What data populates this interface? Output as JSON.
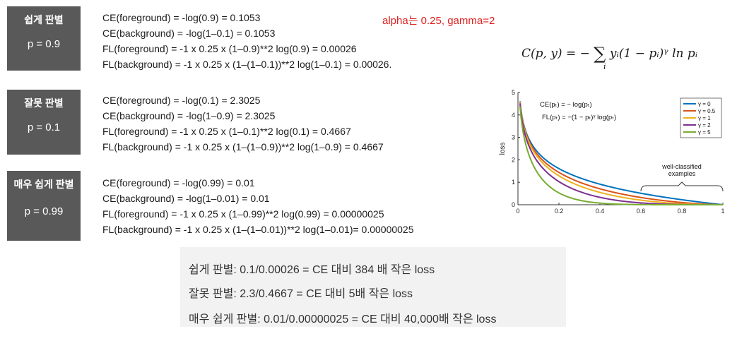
{
  "cases": [
    {
      "title": "쉽게 판별",
      "prob": "p = 0.9",
      "lines": [
        "CE(foreground) = -log(0.9) = 0.1053",
        "CE(background) = -log(1–0.1) = 0.1053",
        "FL(foreground) = -1 x 0.25 x (1–0.9)**2 log(0.9) = 0.00026",
        "FL(background) = -1 x 0.25 x (1–(1–0.1))**2 log(1–0.1) = 0.00026."
      ]
    },
    {
      "title": "잘못 판별",
      "prob": "p = 0.1",
      "lines": [
        "CE(foreground) = -log(0.1) = 2.3025",
        "CE(background) = -log(1–0.9) = 2.3025",
        "FL(foreground) = -1 x 0.25 x (1–0.1)**2 log(0.1) = 0.4667",
        "FL(background) = -1 x 0.25 x (1–(1–0.9))**2 log(1–0.9) = 0.4667"
      ]
    },
    {
      "title": "매우 쉽게 판별",
      "prob": "p = 0.99",
      "lines": [
        "CE(foreground) = -log(0.99) = 0.01",
        "CE(background) = -log(1–0.01) = 0.01",
        "FL(foreground) = -1 x 0.25 x (1–0.99)**2 log(0.99) = 0.00000025",
        "FL(background) = -1 x 0.25 x (1–(1–0.01))**2 log(1–0.01)= 0.00000025"
      ]
    }
  ],
  "alpha_note": "alpha는 0.25, gamma=2",
  "formula": {
    "lhs": "C(p, y) = −",
    "sum": "∑",
    "sub": "i",
    "rhs": "yᵢ(1 − pᵢ)ᵞ ln pᵢ"
  },
  "summary": [
    "쉽게 판별: 0.1/0.00026 = CE 대비 384 배 작은 loss",
    "잘못 판별: 2.3/0.4667 = CE 대비 5배 작은 loss",
    "매우 쉽게 판별: 0.01/0.00000025 = CE 대비 40,000배 작은 loss"
  ],
  "chart_data": {
    "type": "line",
    "ylabel": "loss",
    "xlim": [
      0,
      1
    ],
    "ylim": [
      0,
      5
    ],
    "xticks": [
      "0",
      "0.2",
      "0.4",
      "0.6",
      "0.8",
      "1"
    ],
    "yticks": [
      "0",
      "1",
      "2",
      "3",
      "4",
      "5"
    ],
    "grid": false,
    "legend_position": "top-right",
    "series": [
      {
        "name": "γ = 0",
        "gamma": 0,
        "color": "#0072bd"
      },
      {
        "name": "γ = 0.5",
        "gamma": 0.5,
        "color": "#d95319"
      },
      {
        "name": "γ = 1",
        "gamma": 1,
        "color": "#edb120"
      },
      {
        "name": "γ = 2",
        "gamma": 2,
        "color": "#7e2f8e"
      },
      {
        "name": "γ = 5",
        "gamma": 5,
        "color": "#77ac30"
      }
    ],
    "annotations": {
      "ce_formula": "CE(pₜ) = − log(pₜ)",
      "fl_formula": "FL(pₜ) = −(1 − pₜ)ᵞ log(pₜ)",
      "well_classified_1": "well-classified",
      "well_classified_2": "examples"
    }
  }
}
